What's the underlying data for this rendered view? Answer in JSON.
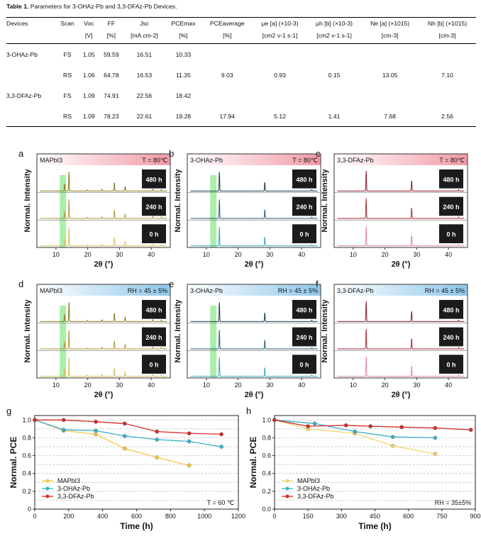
{
  "caption": {
    "label": "Table 1.",
    "text": " Parameters for 3-OHAz-Pb and 3,3-DFAz-Pb Devices."
  },
  "table": {
    "headers1": [
      "Devices",
      "Scan",
      "Voc",
      "FF",
      "Jsc",
      "PCEmax",
      "PCEaverage",
      "μe [a] (×10-3)",
      "μh [b] (×10-3)",
      "Ne [a] (×1015)",
      "Nh [b] (×1015)"
    ],
    "headers2": [
      "",
      "",
      "[V]",
      "[%]",
      "[mA cm-2]",
      "[%]",
      "[%]",
      "[cm2 v-1 s-1]",
      "[cm2 v-1 s-1]",
      "[cm-3]",
      "[cm-3]"
    ],
    "rows": [
      [
        "3-OHAz-Pb",
        "FS",
        "1.05",
        "59.59",
        "16.51",
        "10.33",
        "",
        "",
        "",
        "",
        ""
      ],
      [
        "",
        "RS",
        "1.06",
        "64.78",
        "16.53",
        "11.35",
        "9.03",
        "0.93",
        "0.15",
        "13.05",
        "7.10"
      ],
      [
        "3,3-DFAz-Pb",
        "FS",
        "1.09",
        "74.91",
        "22.56",
        "18.42",
        "",
        "",
        "",
        "",
        ""
      ],
      [
        "",
        "RS",
        "1.09",
        "78.23",
        "22.61",
        "19.28",
        "17.94",
        "5.12",
        "1.41",
        "7.68",
        "2.56"
      ]
    ]
  },
  "xrd": {
    "ylabel": "Normal. Intensity",
    "xlabel": "2θ (°)",
    "xticks": [
      "10",
      "20",
      "30",
      "40"
    ],
    "times": [
      "480 h",
      "240 h",
      "0 h"
    ],
    "panels": [
      {
        "letter": "a",
        "sample": "MAPbI3",
        "cond": "T = 80℃",
        "kind": "T"
      },
      {
        "letter": "b",
        "sample": "3-OHAz-Pb",
        "cond": "T = 80℃",
        "kind": "T"
      },
      {
        "letter": "c",
        "sample": "3,3-DFAz-Pb",
        "cond": "T = 80℃",
        "kind": "T"
      },
      {
        "letter": "d",
        "sample": "MAPbI3",
        "cond": "RH = 45 ± 5%",
        "kind": "RH"
      },
      {
        "letter": "e",
        "sample": "3-OHAz-Pb",
        "cond": "RH = 45 ± 5%",
        "kind": "RH"
      },
      {
        "letter": "f",
        "sample": "3,3-DFAz-Pb",
        "cond": "RH = 45 ± 5%",
        "kind": "RH"
      }
    ],
    "colors": {
      "MAPbI3": [
        "#8a7a1c",
        "#b39a3a",
        "#d8c060"
      ],
      "3-OHAz-Pb": [
        "#1d3a4a",
        "#2e5e70",
        "#3aa8c0"
      ],
      "3,3-DFAz-Pb": [
        "#8a1a2a",
        "#a82a3a",
        "#e08a98"
      ]
    },
    "highlight": "#66e066"
  },
  "chart_data": [
    {
      "type": "line",
      "letter": "g",
      "xlabel": "Time (h)",
      "ylabel": "Normal. PCE",
      "xlim": [
        0,
        1200
      ],
      "ylim": [
        0,
        1.05
      ],
      "xticks": [
        0,
        200,
        400,
        600,
        800,
        1000,
        1200
      ],
      "yticks": [
        0,
        0.2,
        0.4,
        0.6,
        0.8,
        1.0
      ],
      "yticklabels": [
        "0",
        "0.2",
        "0.4",
        "0.6",
        "0.8",
        "1.0"
      ],
      "annotation": "T = 60 ℃",
      "legend": "bottom-left",
      "series": [
        {
          "name": "MAPbI3",
          "color": "#f5c842",
          "x": [
            0,
            170,
            360,
            530,
            720,
            910
          ],
          "y": [
            1.0,
            0.88,
            0.84,
            0.68,
            0.58,
            0.49
          ]
        },
        {
          "name": "3-OHAz-Pb",
          "color": "#3ab0c8",
          "x": [
            0,
            170,
            360,
            530,
            720,
            910,
            1100
          ],
          "y": [
            1.0,
            0.89,
            0.88,
            0.82,
            0.78,
            0.76,
            0.7
          ]
        },
        {
          "name": "3,3-DFAz-Pb",
          "color": "#d42a2a",
          "x": [
            0,
            170,
            360,
            530,
            720,
            910,
            1100
          ],
          "y": [
            1.0,
            1.0,
            0.98,
            0.96,
            0.87,
            0.85,
            0.84
          ]
        }
      ]
    },
    {
      "type": "line",
      "letter": "h",
      "xlabel": "Time (h)",
      "ylabel": "Normal. PCE",
      "xlim": [
        0,
        900
      ],
      "ylim": [
        0,
        1.05
      ],
      "xticks": [
        0,
        150,
        300,
        450,
        600,
        750,
        900
      ],
      "yticks": [
        0,
        0.2,
        0.4,
        0.6,
        0.8,
        1.0
      ],
      "yticklabels": [
        "0.0",
        "0.2",
        "0.4",
        "0.6",
        "0.8",
        "1.0"
      ],
      "annotation": "RH = 35±5%",
      "legend": "bottom-left",
      "series": [
        {
          "name": "MAPbI3",
          "color": "#f5d76a",
          "x": [
            0,
            150,
            360,
            530,
            720
          ],
          "y": [
            1.0,
            0.9,
            0.85,
            0.71,
            0.62
          ]
        },
        {
          "name": "3-OHAz-Pb",
          "color": "#3ab0c8",
          "x": [
            0,
            180,
            360,
            530,
            720
          ],
          "y": [
            1.0,
            0.96,
            0.87,
            0.81,
            0.8
          ]
        },
        {
          "name": "3,3-DFAz-Pb",
          "color": "#d42a2a",
          "x": [
            0,
            150,
            320,
            430,
            570,
            720,
            880
          ],
          "y": [
            1.0,
            0.93,
            0.94,
            0.93,
            0.92,
            0.91,
            0.89
          ]
        }
      ]
    }
  ]
}
